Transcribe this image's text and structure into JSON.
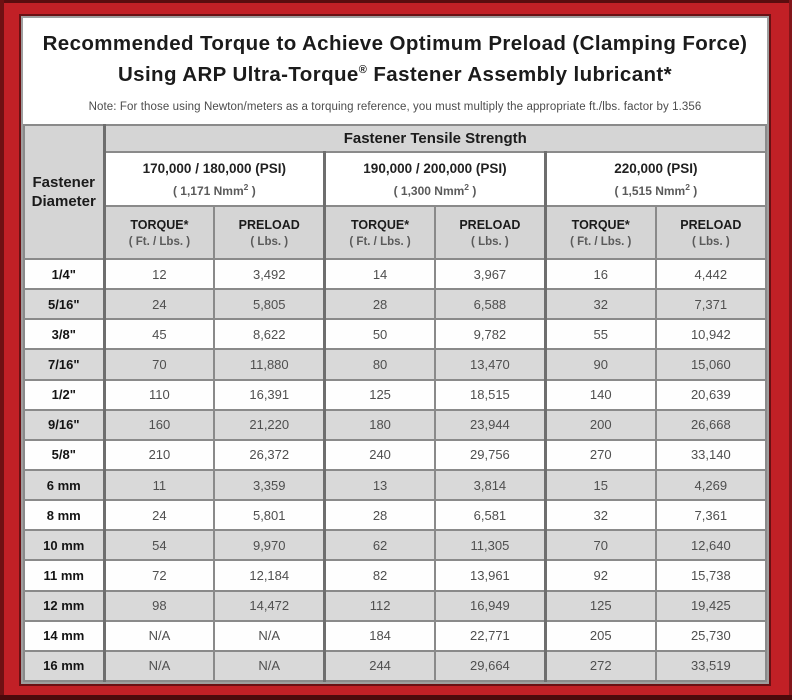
{
  "frame": {
    "red": "#c12026",
    "edge_dark": "#5a0d0f",
    "panel_border": "#9e9e9e"
  },
  "title": {
    "line1": "Recommended Torque to Achieve Optimum Preload (Clamping Force)",
    "line2_pre": "Using ARP Ultra-Torque",
    "line2_sup": "®",
    "line2_post": " Fastener Assembly lubricant*"
  },
  "note": "Note: For those using Newton/meters as a torquing reference, you must multiply the appropriate ft./lbs. factor by 1.356",
  "table": {
    "corner_header": {
      "line1": "Fastener",
      "line2": "Diameter"
    },
    "tensile_header": "Fastener Tensile Strength",
    "strength_groups": [
      {
        "psi": "170,000 / 180,000 (PSI)",
        "nmm_pre": "( 1,171 Nmm",
        "nmm_sup": "2",
        "nmm_post": " )"
      },
      {
        "psi": "190,000 / 200,000 (PSI)",
        "nmm_pre": "( 1,300 Nmm",
        "nmm_sup": "2",
        "nmm_post": " )"
      },
      {
        "psi": "220,000 (PSI)",
        "nmm_pre": "( 1,515 Nmm",
        "nmm_sup": "2",
        "nmm_post": " )"
      }
    ],
    "col_headers": [
      {
        "label": "TORQUE*",
        "sub": "( Ft. / Lbs. )"
      },
      {
        "label": "PRELOAD",
        "sub": "( Lbs. )"
      },
      {
        "label": "TORQUE*",
        "sub": "( Ft. / Lbs. )"
      },
      {
        "label": "PRELOAD",
        "sub": "( Lbs. )"
      },
      {
        "label": "TORQUE*",
        "sub": "( Ft. / Lbs. )"
      },
      {
        "label": "PRELOAD",
        "sub": "( Lbs. )"
      }
    ],
    "rows": [
      {
        "diameter": "1/4\"",
        "values": [
          "12",
          "3,492",
          "14",
          "3,967",
          "16",
          "4,442"
        ]
      },
      {
        "diameter": "5/16\"",
        "values": [
          "24",
          "5,805",
          "28",
          "6,588",
          "32",
          "7,371"
        ]
      },
      {
        "diameter": "3/8\"",
        "values": [
          "45",
          "8,622",
          "50",
          "9,782",
          "55",
          "10,942"
        ]
      },
      {
        "diameter": "7/16\"",
        "values": [
          "70",
          "11,880",
          "80",
          "13,470",
          "90",
          "15,060"
        ]
      },
      {
        "diameter": "1/2\"",
        "values": [
          "110",
          "16,391",
          "125",
          "18,515",
          "140",
          "20,639"
        ]
      },
      {
        "diameter": "9/16\"",
        "values": [
          "160",
          "21,220",
          "180",
          "23,944",
          "200",
          "26,668"
        ]
      },
      {
        "diameter": "5/8\"",
        "values": [
          "210",
          "26,372",
          "240",
          "29,756",
          "270",
          "33,140"
        ]
      },
      {
        "diameter": "6 mm",
        "values": [
          "11",
          "3,359",
          "13",
          "3,814",
          "15",
          "4,269"
        ]
      },
      {
        "diameter": "8 mm",
        "values": [
          "24",
          "5,801",
          "28",
          "6,581",
          "32",
          "7,361"
        ]
      },
      {
        "diameter": "10 mm",
        "values": [
          "54",
          "9,970",
          "62",
          "11,305",
          "70",
          "12,640"
        ]
      },
      {
        "diameter": "11 mm",
        "values": [
          "72",
          "12,184",
          "82",
          "13,961",
          "92",
          "15,738"
        ]
      },
      {
        "diameter": "12 mm",
        "values": [
          "98",
          "14,472",
          "112",
          "16,949",
          "125",
          "19,425"
        ]
      },
      {
        "diameter": "14 mm",
        "values": [
          "N/A",
          "N/A",
          "184",
          "22,771",
          "205",
          "25,730"
        ]
      },
      {
        "diameter": "16 mm",
        "values": [
          "N/A",
          "N/A",
          "244",
          "29,664",
          "272",
          "33,519"
        ]
      }
    ]
  }
}
